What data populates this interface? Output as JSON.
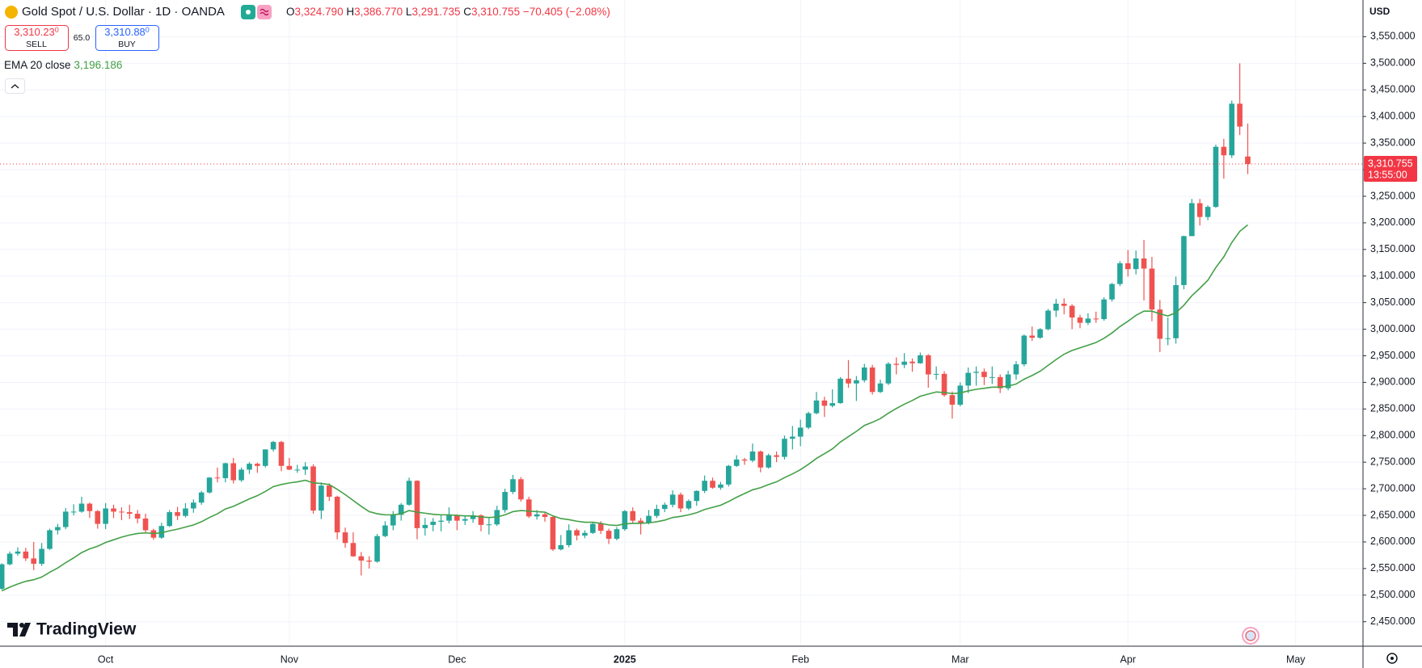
{
  "chart_data": {
    "type": "candlestick",
    "title": "Gold Spot / U.S. Dollar · 1D · OANDA",
    "currency": "USD",
    "ohlc_legend": {
      "open_label": "O",
      "open": "3,324.790",
      "high_label": "H",
      "high": "3,386.770",
      "low_label": "L",
      "low": "3,291.735",
      "close_label": "C",
      "close": "3,310.755",
      "change": "−70.405 (−2.08%)"
    },
    "sell": {
      "price": "3,310.23",
      "pip": "0",
      "label": "SELL"
    },
    "spread": "65.0",
    "buy": {
      "price": "3,310.88",
      "pip": "0",
      "label": "BUY"
    },
    "last_price_label": "3,310.755",
    "countdown": "13:55:00",
    "logo": "TradingView",
    "up_color": "#26a69a",
    "down_color": "#ef5350",
    "grid": true,
    "ylim": [
      2404,
      3619
    ],
    "yticks": [
      {
        "value": 2450,
        "label": "2,450.000"
      },
      {
        "value": 2500,
        "label": "2,500.000"
      },
      {
        "value": 2550,
        "label": "2,550.000"
      },
      {
        "value": 2600,
        "label": "2,600.000"
      },
      {
        "value": 2650,
        "label": "2,650.000"
      },
      {
        "value": 2700,
        "label": "2,700.000"
      },
      {
        "value": 2750,
        "label": "2,750.000"
      },
      {
        "value": 2800,
        "label": "2,800.000"
      },
      {
        "value": 2850,
        "label": "2,850.000"
      },
      {
        "value": 2900,
        "label": "2,900.000"
      },
      {
        "value": 2950,
        "label": "2,950.000"
      },
      {
        "value": 3000,
        "label": "3,000.000"
      },
      {
        "value": 3050,
        "label": "3,050.000"
      },
      {
        "value": 3100,
        "label": "3,100.000"
      },
      {
        "value": 3150,
        "label": "3,150.000"
      },
      {
        "value": 3200,
        "label": "3,200.000"
      },
      {
        "value": 3250,
        "label": "3,250.000"
      },
      {
        "value": 3300,
        "label": "3,300.000"
      },
      {
        "value": 3350,
        "label": "3,350.000"
      },
      {
        "value": 3400,
        "label": "3,400.000"
      },
      {
        "value": 3450,
        "label": "3,450.000"
      },
      {
        "value": 3500,
        "label": "3,500.000"
      },
      {
        "value": 3550,
        "label": "3,550.000"
      }
    ],
    "categories": [
      null,
      null,
      null,
      null,
      null,
      null,
      null,
      null,
      null,
      null,
      null,
      null,
      null,
      "Oct",
      null,
      null,
      null,
      null,
      null,
      null,
      null,
      null,
      null,
      null,
      null,
      null,
      null,
      null,
      null,
      null,
      null,
      null,
      null,
      null,
      null,
      null,
      "Nov",
      null,
      null,
      null,
      null,
      null,
      null,
      null,
      null,
      null,
      null,
      null,
      null,
      null,
      null,
      null,
      null,
      null,
      null,
      null,
      null,
      "Dec",
      null,
      null,
      null,
      null,
      null,
      null,
      null,
      null,
      null,
      null,
      null,
      null,
      null,
      null,
      null,
      null,
      null,
      null,
      null,
      null,
      "2025",
      null,
      null,
      null,
      null,
      null,
      null,
      null,
      null,
      null,
      null,
      null,
      null,
      null,
      null,
      null,
      null,
      null,
      null,
      null,
      null,
      null,
      "Feb",
      null,
      null,
      null,
      null,
      null,
      null,
      null,
      null,
      null,
      null,
      null,
      null,
      null,
      null,
      null,
      null,
      null,
      null,
      null,
      "Mar",
      null,
      null,
      null,
      null,
      null,
      null,
      null,
      null,
      null,
      null,
      null,
      null,
      null,
      null,
      null,
      null,
      null,
      null,
      null,
      null,
      "Apr",
      null,
      null,
      null,
      null,
      null,
      null,
      null,
      null,
      null,
      null,
      null,
      null,
      null,
      null,
      null,
      null,
      null,
      null,
      null,
      null,
      "May"
    ],
    "open": [
      2512,
      2558,
      2578,
      2582,
      2569,
      2559,
      2587,
      2622,
      2628,
      2657,
      2657,
      2672,
      2658,
      2634,
      2663,
      2657,
      2656,
      2653,
      2644,
      2622,
      2608,
      2630,
      2656,
      2649,
      2663,
      2674,
      2693,
      2721,
      2720,
      2748,
      2716,
      2736,
      2747,
      2743,
      2774,
      2788,
      2743,
      2736,
      2736,
      2742,
      2659,
      2706,
      2685,
      2618,
      2598,
      2573,
      2565,
      2563,
      2611,
      2631,
      2651,
      2670,
      2715,
      2626,
      2632,
      2638,
      2640,
      2650,
      2640,
      2643,
      2650,
      2632,
      2633,
      2660,
      2694,
      2718,
      2680,
      2648,
      2652,
      2647,
      2586,
      2594,
      2622,
      2612,
      2617,
      2634,
      2621,
      2606,
      2624,
      2658,
      2640,
      2636,
      2649,
      2662,
      2670,
      2689,
      2663,
      2677,
      2696,
      2715,
      2702,
      2708,
      2743,
      2755,
      2753,
      2770,
      2740,
      2763,
      2760,
      2794,
      2798,
      2815,
      2842,
      2866,
      2856,
      2861,
      2907,
      2898,
      2904,
      2928,
      2882,
      2898,
      2935,
      2933,
      2939,
      2936,
      2951,
      2915,
      2916,
      2876,
      2858,
      2894,
      2918,
      2920,
      2910,
      2910,
      2889,
      2915,
      2934,
      2988,
      2984,
      3000,
      3035,
      3048,
      3044,
      3022,
      3012,
      3020,
      3019,
      3056,
      3085,
      3124,
      3113,
      3133,
      3114,
      3037,
      2982,
      2983,
      3083,
      3175,
      3237,
      3211,
      3230,
      3343,
      3327,
      3424,
      3324.79,
      null,
      null,
      null,
      null,
      null,
      null
    ],
    "high": [
      2560,
      2582,
      2590,
      2589,
      2600,
      2598,
      2625,
      2634,
      2664,
      2671,
      2685,
      2674,
      2660,
      2673,
      2670,
      2665,
      2670,
      2660,
      2653,
      2625,
      2636,
      2660,
      2666,
      2673,
      2680,
      2696,
      2722,
      2740,
      2749,
      2758,
      2740,
      2750,
      2749,
      2774,
      2790,
      2790,
      2758,
      2745,
      2750,
      2746,
      2712,
      2710,
      2687,
      2627,
      2618,
      2581,
      2573,
      2615,
      2639,
      2658,
      2673,
      2721,
      2716,
      2645,
      2645,
      2650,
      2665,
      2652,
      2650,
      2658,
      2652,
      2645,
      2668,
      2700,
      2726,
      2722,
      2685,
      2660,
      2655,
      2650,
      2613,
      2633,
      2625,
      2622,
      2638,
      2639,
      2625,
      2628,
      2660,
      2665,
      2645,
      2660,
      2670,
      2674,
      2697,
      2693,
      2680,
      2697,
      2725,
      2721,
      2713,
      2745,
      2763,
      2758,
      2785,
      2772,
      2766,
      2770,
      2800,
      2818,
      2830,
      2845,
      2882,
      2873,
      2887,
      2910,
      2942,
      2912,
      2935,
      2933,
      2905,
      2938,
      2947,
      2955,
      2945,
      2956,
      2953,
      2930,
      2921,
      2883,
      2900,
      2928,
      2930,
      2926,
      2930,
      2915,
      2922,
      2940,
      2990,
      3005,
      3002,
      3038,
      3057,
      3058,
      3047,
      3027,
      3030,
      3033,
      3060,
      3087,
      3128,
      3149,
      3148,
      3168,
      3136,
      3055,
      3022,
      3099,
      3176,
      3245,
      3245,
      3233,
      3347,
      3358,
      3430,
      3500,
      3386.77,
      null,
      null,
      null,
      null,
      null,
      null
    ],
    "low": [
      2510,
      2556,
      2574,
      2564,
      2547,
      2555,
      2585,
      2614,
      2624,
      2650,
      2655,
      2645,
      2625,
      2624,
      2645,
      2641,
      2643,
      2635,
      2617,
      2604,
      2606,
      2628,
      2641,
      2646,
      2655,
      2670,
      2691,
      2712,
      2712,
      2710,
      2713,
      2728,
      2730,
      2740,
      2770,
      2733,
      2735,
      2730,
      2726,
      2653,
      2643,
      2677,
      2605,
      2589,
      2572,
      2537,
      2550,
      2561,
      2609,
      2622,
      2640,
      2668,
      2605,
      2612,
      2620,
      2620,
      2635,
      2622,
      2632,
      2636,
      2620,
      2614,
      2630,
      2655,
      2690,
      2676,
      2645,
      2642,
      2638,
      2583,
      2584,
      2590,
      2603,
      2607,
      2615,
      2615,
      2596,
      2603,
      2621,
      2635,
      2614,
      2633,
      2645,
      2656,
      2665,
      2656,
      2660,
      2668,
      2692,
      2700,
      2698,
      2704,
      2741,
      2745,
      2750,
      2731,
      2738,
      2750,
      2755,
      2774,
      2780,
      2812,
      2840,
      2835,
      2853,
      2860,
      2890,
      2865,
      2900,
      2877,
      2880,
      2895,
      2915,
      2927,
      2920,
      2935,
      2890,
      2905,
      2873,
      2832,
      2855,
      2880,
      2894,
      2895,
      2897,
      2880,
      2885,
      2905,
      2930,
      2978,
      2982,
      2998,
      3023,
      3028,
      3000,
      3002,
      3008,
      3012,
      3016,
      3052,
      3081,
      3099,
      3103,
      3054,
      3015,
      2957,
      2970,
      2973,
      3075,
      3175,
      3195,
      3205,
      3228,
      3283,
      3322,
      3365,
      3291.735,
      null,
      null,
      null,
      null,
      null,
      null
    ],
    "close": [
      2558,
      2578,
      2582,
      2569,
      2559,
      2587,
      2622,
      2628,
      2657,
      2657,
      2672,
      2658,
      2634,
      2663,
      2657,
      2656,
      2653,
      2644,
      2622,
      2608,
      2630,
      2656,
      2649,
      2663,
      2674,
      2693,
      2721,
      2720,
      2748,
      2716,
      2736,
      2747,
      2743,
      2774,
      2788,
      2743,
      2736,
      2736,
      2742,
      2659,
      2706,
      2685,
      2618,
      2598,
      2573,
      2565,
      2563,
      2611,
      2631,
      2651,
      2670,
      2715,
      2626,
      2632,
      2638,
      2640,
      2650,
      2640,
      2643,
      2650,
      2632,
      2633,
      2660,
      2694,
      2718,
      2680,
      2648,
      2652,
      2647,
      2586,
      2594,
      2622,
      2612,
      2617,
      2634,
      2621,
      2606,
      2624,
      2658,
      2640,
      2636,
      2649,
      2662,
      2670,
      2689,
      2663,
      2677,
      2696,
      2715,
      2702,
      2708,
      2743,
      2755,
      2753,
      2770,
      2740,
      2763,
      2760,
      2794,
      2798,
      2815,
      2842,
      2866,
      2856,
      2861,
      2907,
      2898,
      2904,
      2928,
      2882,
      2898,
      2935,
      2933,
      2939,
      2936,
      2951,
      2915,
      2916,
      2876,
      2858,
      2894,
      2918,
      2920,
      2910,
      2910,
      2889,
      2915,
      2934,
      2988,
      2984,
      3000,
      3035,
      3048,
      3044,
      3022,
      3012,
      3020,
      3019,
      3056,
      3085,
      3124,
      3113,
      3133,
      3114,
      3037,
      2982,
      2983,
      3083,
      3175,
      3237,
      3211,
      3230,
      3343,
      3327,
      3424,
      3381,
      3310.755,
      null,
      null,
      null,
      null,
      null,
      null
    ],
    "indicator": {
      "name": "EMA 20 close",
      "color": "#43a047",
      "value_label": "3,196.186",
      "values": [
        2508,
        2515,
        2521,
        2526,
        2529,
        2534,
        2543,
        2551,
        2561,
        2570,
        2580,
        2587,
        2592,
        2599,
        2604,
        2609,
        2613,
        2616,
        2617,
        2616,
        2617,
        2621,
        2624,
        2628,
        2632,
        2638,
        2646,
        2653,
        2662,
        2667,
        2674,
        2681,
        2687,
        2695,
        2704,
        2708,
        2711,
        2713,
        2716,
        2711,
        2710,
        2708,
        2699,
        2689,
        2678,
        2667,
        2657,
        2653,
        2651,
        2651,
        2653,
        2659,
        2656,
        2654,
        2652,
        2651,
        2651,
        2650,
        2649,
        2649,
        2647,
        2646,
        2647,
        2651,
        2657,
        2659,
        2658,
        2657,
        2656,
        2649,
        2644,
        2642,
        2639,
        2637,
        2637,
        2635,
        2632,
        2631,
        2634,
        2635,
        2635,
        2636,
        2638,
        2641,
        2646,
        2648,
        2651,
        2655,
        2661,
        2665,
        2669,
        2676,
        2684,
        2691,
        2698,
        2702,
        2708,
        2713,
        2721,
        2728,
        2736,
        2746,
        2757,
        2766,
        2775,
        2788,
        2798,
        2808,
        2819,
        2825,
        2832,
        2842,
        2851,
        2859,
        2866,
        2874,
        2878,
        2882,
        2881,
        2879,
        2880,
        2884,
        2887,
        2889,
        2891,
        2891,
        2893,
        2897,
        2906,
        2913,
        2921,
        2932,
        2943,
        2953,
        2960,
        2965,
        2970,
        2975,
        2983,
        2993,
        3005,
        3015,
        3026,
        3034,
        3034,
        3029,
        3025,
        3031,
        3045,
        3063,
        3077,
        3092,
        3116,
        3136,
        3163,
        3184,
        3196.186,
        null,
        null,
        null,
        null,
        null,
        null
      ]
    }
  }
}
